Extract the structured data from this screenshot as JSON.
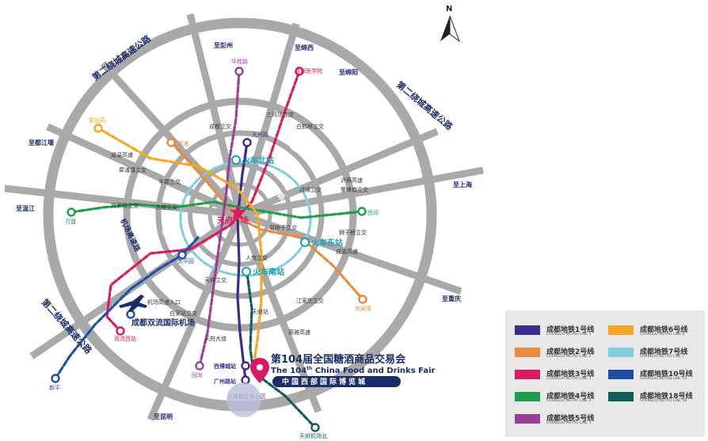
{
  "map": {
    "north_label": "N",
    "ring_road_label": "第二绕城高速公路",
    "directions": {
      "pengzhou": "至彭州",
      "xiangxi": "至绵西",
      "mianyang": "至绵阳",
      "dujiangyan": "至都江堰",
      "wenjiang": "至温江",
      "shanghai": "至上海",
      "chongqing": "至重庆",
      "kunming": "至昆明"
    },
    "interchanges": {
      "sanhe": "三河场立交",
      "chengdu_li": "成都立交",
      "baijia": "白鹤林立交",
      "xincheng": "成温高速",
      "jiaopeng": "犀浦镇立交",
      "yangxi": "羊犀立交",
      "wenjia": "文家场立交",
      "sujia": "苏坡立交",
      "huchang": "沪蓉高速",
      "xianhe": "成绵立交",
      "xishu": "蜀峰南立交",
      "xiaonan": "双桥子立交",
      "shizi": "狮子桥立交",
      "chengyu": "成渝高速",
      "renzhi": "人南立交",
      "tianfu_li": "天府立交",
      "airport_hw": "机场高速入口",
      "baijiali": "白家站立交",
      "jiangjia": "江家庄立交",
      "chengya": "蓉雅高速",
      "tianfu_da": "天府大道",
      "tianfu_yuan": "天府站"
    },
    "roads": {
      "third_ring_a": "三环路",
      "third_ring_b": "三环路",
      "third_ring_c": "三环路",
      "first_ring": "一环路",
      "airport_road": "机场高速路"
    },
    "stations": {
      "xinjiadu": "华桂路",
      "chengdu_uni": "成都医学院",
      "wangcong": "望丛祠",
      "xipu": "犀浦",
      "tianhe": "天河路",
      "wansheng": "万盛",
      "xihe": "西河",
      "taipingyuan": "太平园",
      "shuangliu_west": "双流西站",
      "xinping": "新平",
      "longquan": "龙泉驿",
      "guolong": "回龙",
      "xibo": "西博城站",
      "guangzhou": "广州路站",
      "tianfu_hub": "天府新区核心区",
      "airport_north": "天府机场北",
      "nanjiao": "新南门"
    },
    "hubs": {
      "huoche_north": "火车北站",
      "tianfu_sq": "天府广场",
      "huoche_east": "火车东站",
      "huoche_south": "火车南站",
      "airport": "成都双流国际机场"
    }
  },
  "fair": {
    "title": "第104届全国糖酒商品交易会",
    "sub_prefix": "The",
    "sub_num": "104",
    "sub_sup": "th",
    "sub_rest": "China Food and Drinks Fair",
    "banner": "中国西部国际博览城"
  },
  "legend": [
    {
      "name": "成都地铁1号线",
      "en": "CHENGDU METRO LINE 1",
      "color": "#3d2c8d"
    },
    {
      "name": "成都地铁6号线",
      "en": "CHENGDU METRO LINE 6",
      "color": "#f5a623"
    },
    {
      "name": "成都地铁2号线",
      "en": "CHENGDU METRO LINE 2",
      "color": "#e98a3c"
    },
    {
      "name": "成都地铁7号线",
      "en": "CHENGDU METRO LINE 7",
      "color": "#7fcfde"
    },
    {
      "name": "成都地铁3号线",
      "en": "CHENGDU METRO LINE 3",
      "color": "#d81b60"
    },
    {
      "name": "成都地铁10号线",
      "en": "CHENGDU METRO LINE 10",
      "color": "#1f4ea8"
    },
    {
      "name": "成都地铁4号线",
      "en": "CHENGDU METRO LINE 4",
      "color": "#1e9e4a"
    },
    {
      "name": "成都地铁18号线",
      "en": "CHENGDU METRO LINE 18",
      "color": "#0f5e5a"
    },
    {
      "name": "成都地铁5号线",
      "en": "CHENGDU METRO LINE 5",
      "color": "#9b3f95"
    }
  ]
}
